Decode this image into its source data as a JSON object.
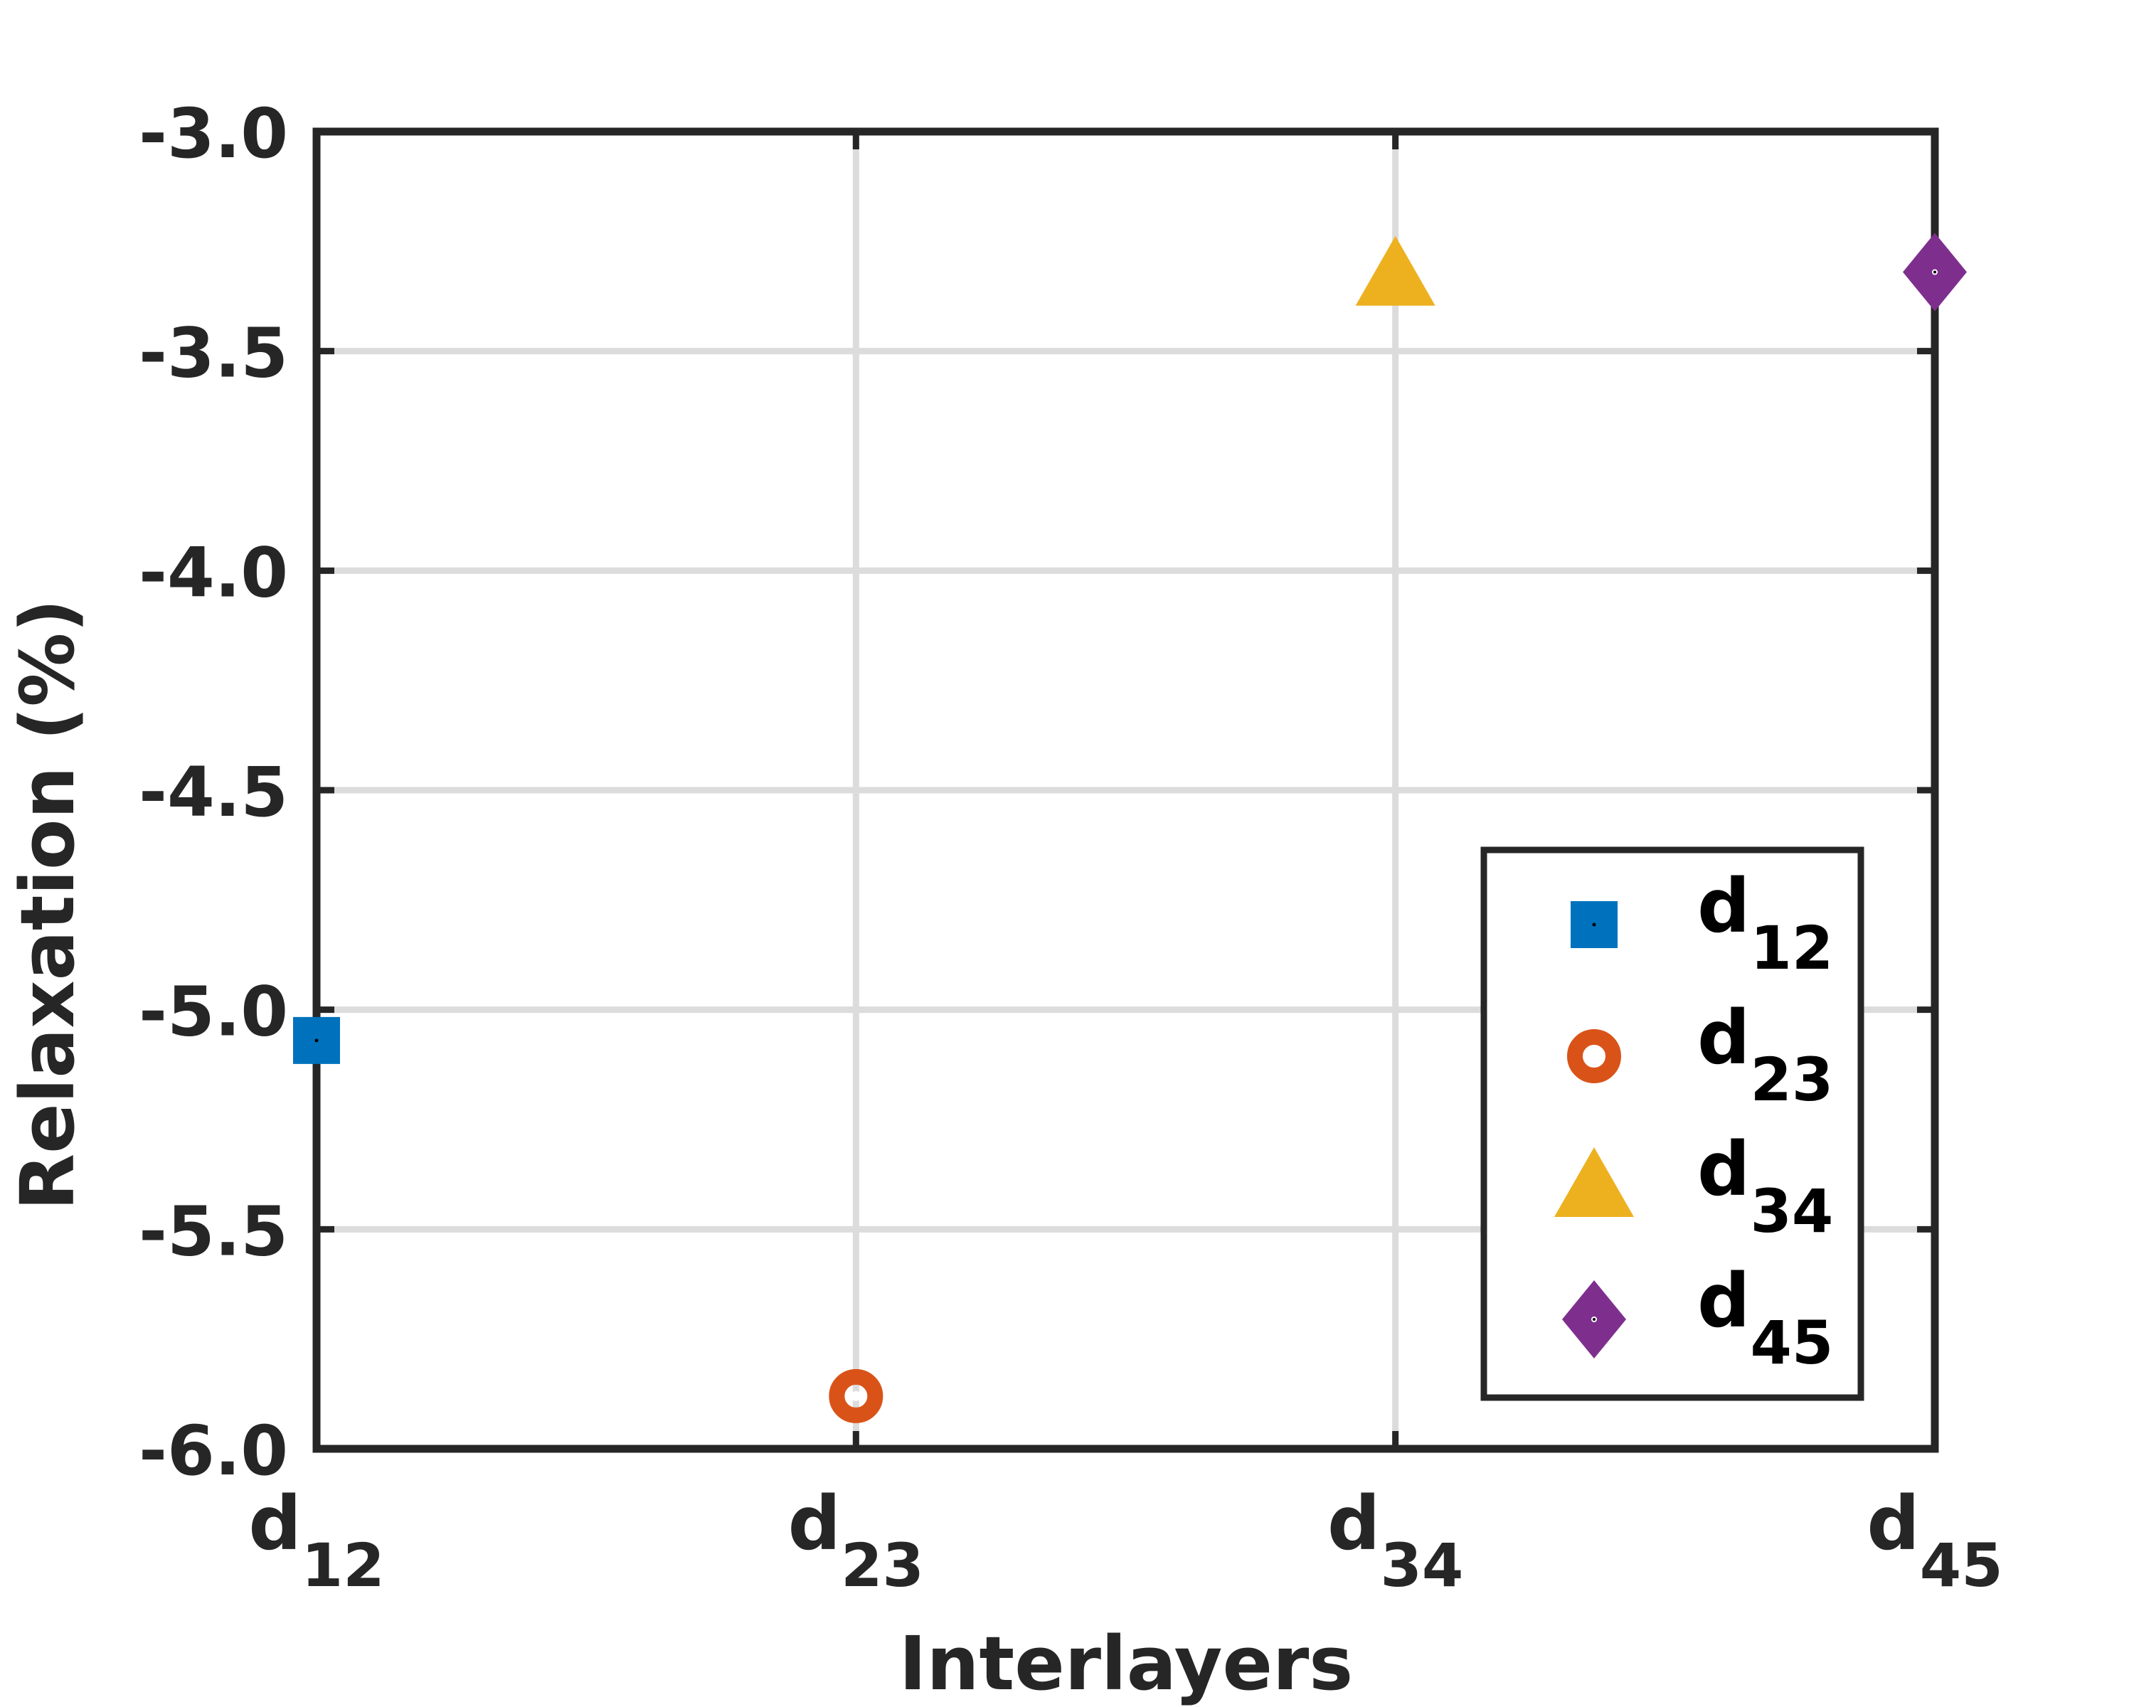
{
  "chart_data": {
    "type": "scatter",
    "title": "",
    "xlabel": "Interlayers",
    "ylabel": "Relaxation (%)",
    "categories": [
      {
        "base": "d",
        "sub": "12"
      },
      {
        "base": "d",
        "sub": "23"
      },
      {
        "base": "d",
        "sub": "34"
      },
      {
        "base": "d",
        "sub": "45"
      }
    ],
    "ylim": [
      -6.0,
      -3.0
    ],
    "yticks": [
      "-6.0",
      "-5.5",
      "-5.0",
      "-4.5",
      "-4.0",
      "-3.5",
      "-3.0"
    ],
    "grid": true,
    "legend_position": "bottom-right",
    "series": [
      {
        "name": {
          "base": "d",
          "sub": "12"
        },
        "x": "d12",
        "y": -5.07,
        "marker": "square",
        "color": "#0072BD"
      },
      {
        "name": {
          "base": "d",
          "sub": "23"
        },
        "x": "d23",
        "y": -5.88,
        "marker": "circle",
        "color": "#D95319"
      },
      {
        "name": {
          "base": "d",
          "sub": "34"
        },
        "x": "d34",
        "y": -3.33,
        "marker": "triangle",
        "color": "#EDB120"
      },
      {
        "name": {
          "base": "d",
          "sub": "45"
        },
        "x": "d45",
        "y": -3.32,
        "marker": "diamond",
        "color": "#7E2F8E"
      }
    ],
    "colors": {
      "axis": "#262626",
      "grid": "#DCDCDC"
    }
  }
}
